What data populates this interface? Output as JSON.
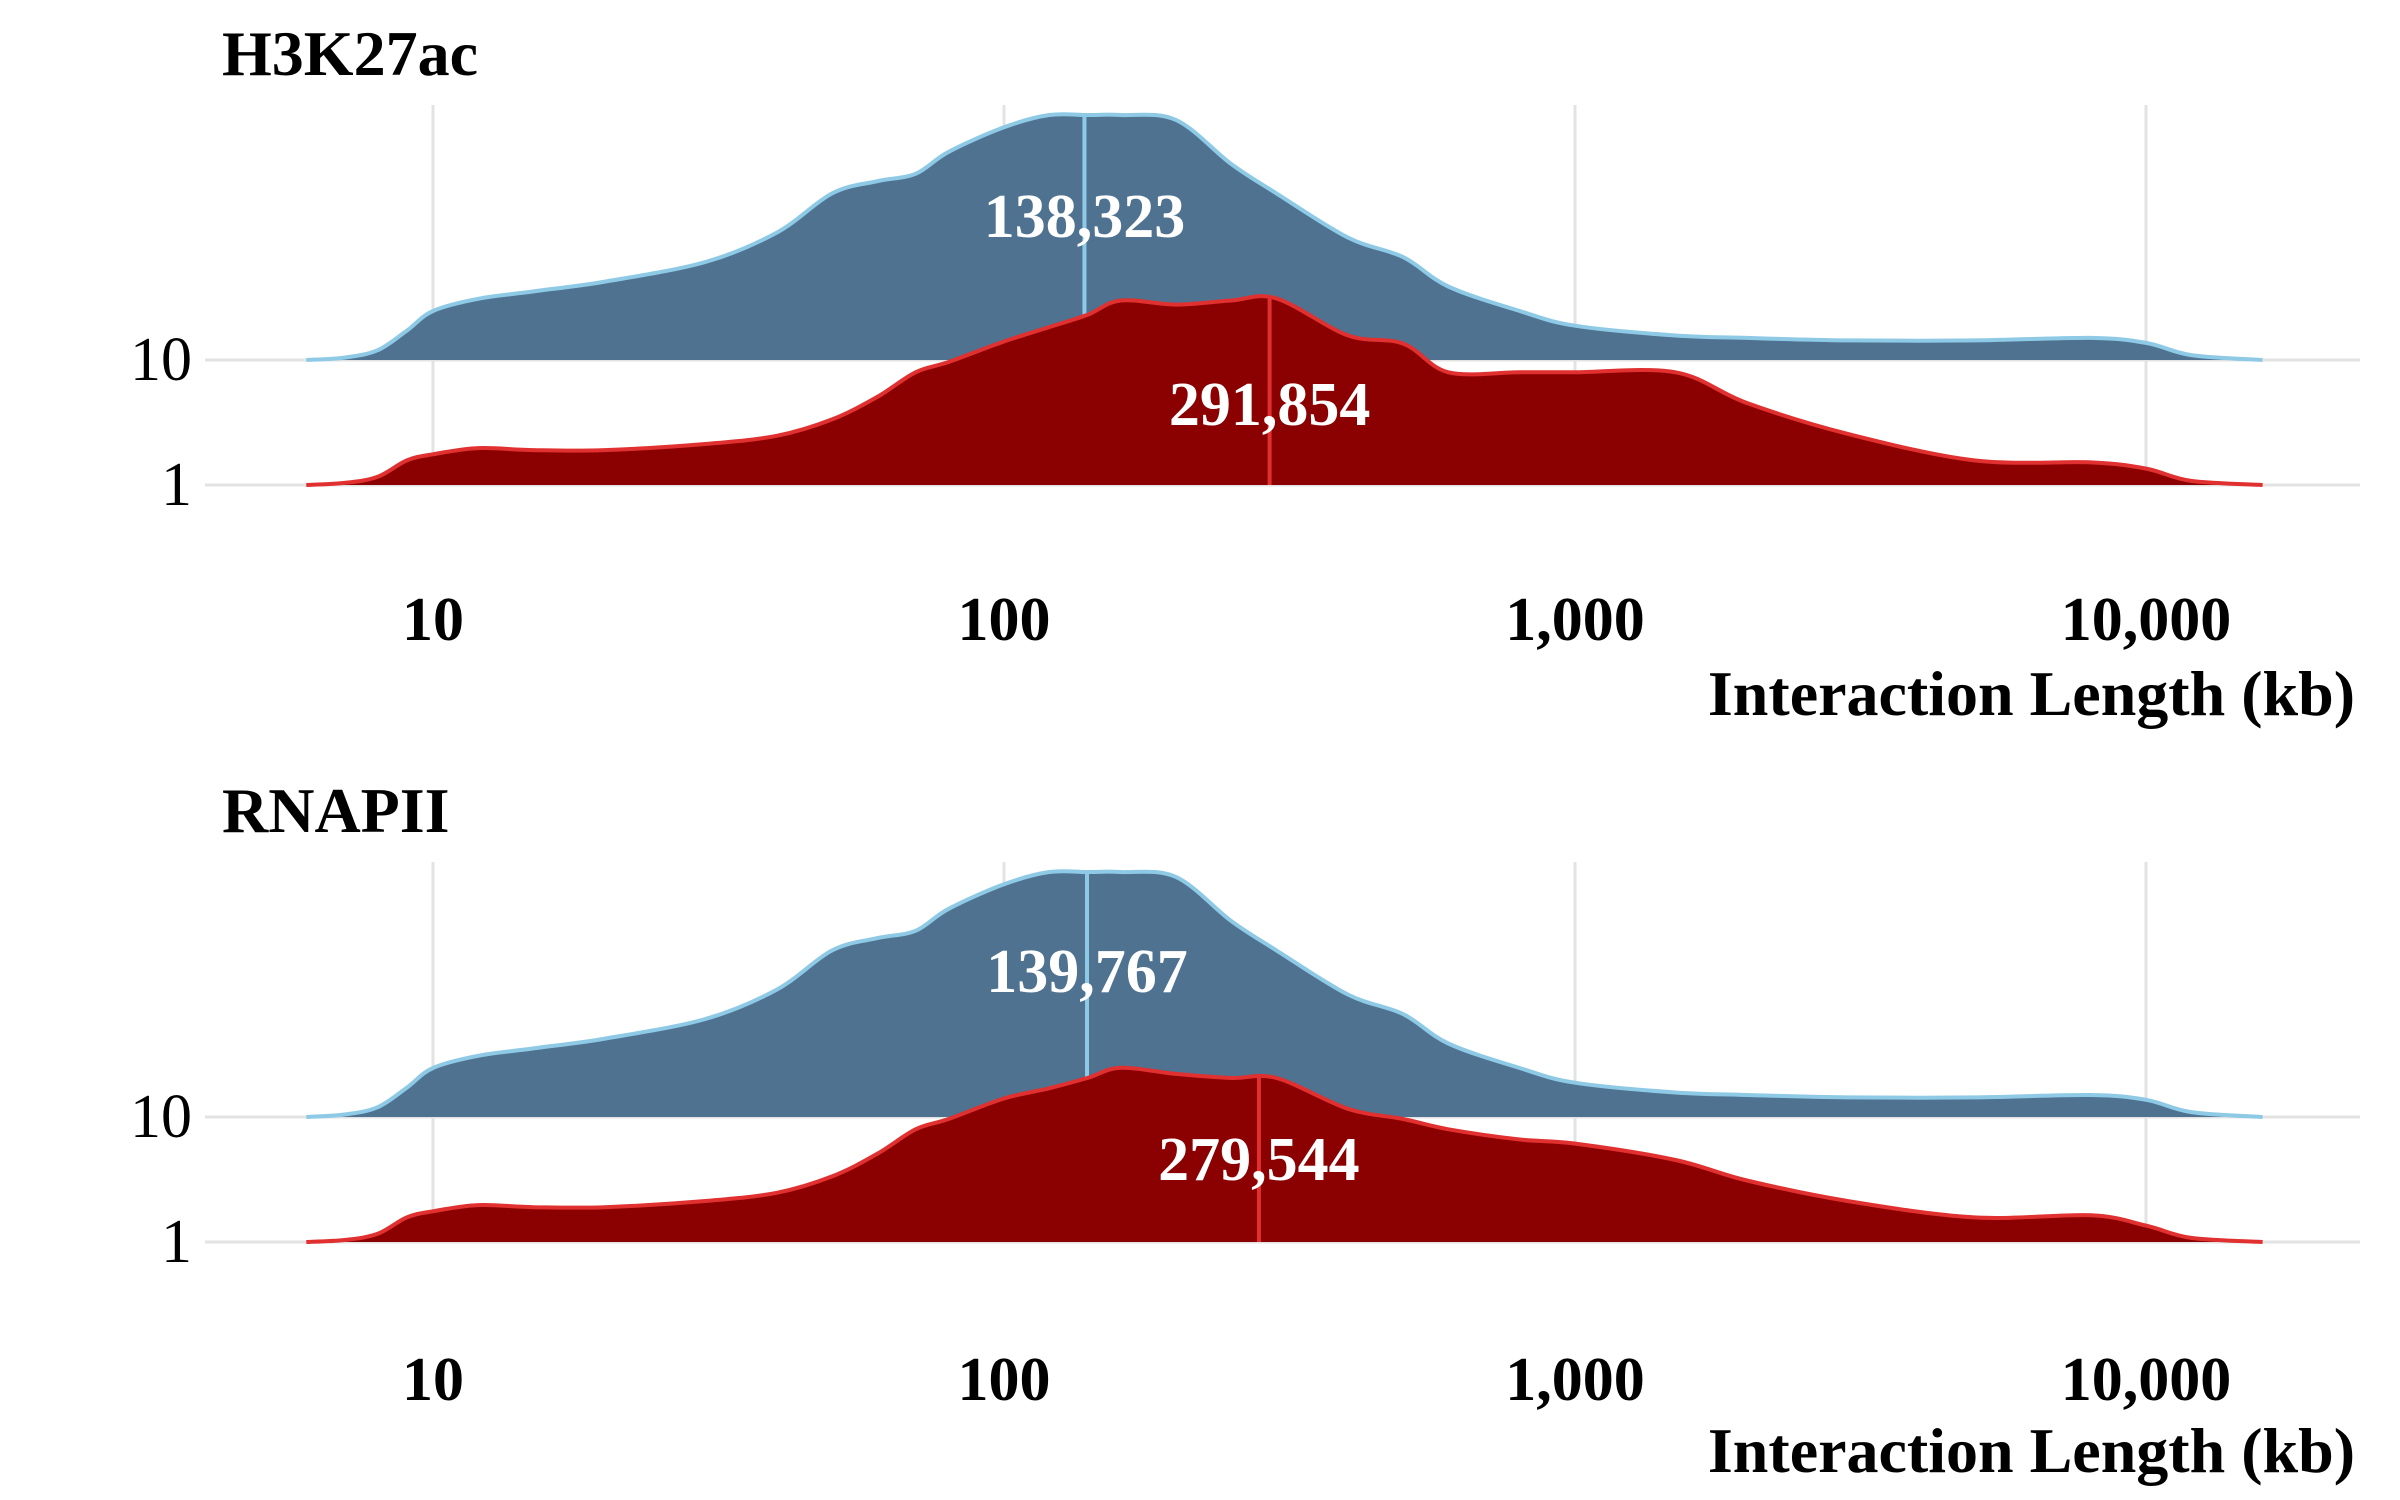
{
  "chart_data": [
    {
      "type": "area",
      "title": "H3K27ac",
      "xlabel": "Interaction Length (kb)",
      "ylabel": "",
      "x_scale": "log10",
      "xlim": [
        6,
        16000
      ],
      "x_ticks": [
        10,
        100,
        1000,
        10000
      ],
      "x_tick_labels": [
        "10",
        "100",
        "1,000",
        "10,000"
      ],
      "y_tick_labels": [
        "10",
        "1"
      ],
      "grid": true,
      "series": [
        {
          "name": "10",
          "color": "#4e7290",
          "line_color": "#8ecae6",
          "median": 138.323,
          "median_label": "138,323",
          "x": [
            6,
            7,
            8,
            9,
            10,
            12,
            15,
            20,
            30,
            40,
            50,
            60,
            70,
            80,
            100,
            120,
            140,
            160,
            200,
            250,
            300,
            400,
            500,
            600,
            800,
            1000,
            1500,
            2000,
            3000,
            5000,
            8000,
            10000,
            12000,
            16000
          ],
          "density": [
            0,
            0.01,
            0.04,
            0.12,
            0.2,
            0.25,
            0.28,
            0.32,
            0.4,
            0.52,
            0.68,
            0.73,
            0.76,
            0.85,
            0.95,
            1.0,
            1.0,
            1.0,
            0.98,
            0.8,
            0.68,
            0.5,
            0.42,
            0.3,
            0.2,
            0.14,
            0.1,
            0.09,
            0.08,
            0.08,
            0.09,
            0.07,
            0.02,
            0
          ]
        },
        {
          "name": "1",
          "color": "#8b0000",
          "line_color": "#e03030",
          "median": 291.854,
          "median_label": "291,854",
          "x": [
            6,
            7,
            8,
            9,
            10,
            12,
            15,
            20,
            30,
            40,
            50,
            60,
            70,
            80,
            100,
            120,
            140,
            160,
            200,
            250,
            300,
            400,
            500,
            600,
            800,
            1000,
            1500,
            2000,
            3000,
            5000,
            8000,
            10000,
            12000,
            16000
          ],
          "density": [
            0,
            0.01,
            0.04,
            0.12,
            0.15,
            0.18,
            0.17,
            0.17,
            0.2,
            0.24,
            0.32,
            0.43,
            0.55,
            0.6,
            0.7,
            0.77,
            0.83,
            0.9,
            0.88,
            0.9,
            0.91,
            0.73,
            0.69,
            0.55,
            0.55,
            0.55,
            0.55,
            0.4,
            0.25,
            0.12,
            0.11,
            0.08,
            0.02,
            0
          ]
        }
      ]
    },
    {
      "type": "area",
      "title": "RNAPII",
      "xlabel": "Interaction Length (kb)",
      "ylabel": "",
      "x_scale": "log10",
      "xlim": [
        6,
        16000
      ],
      "x_ticks": [
        10,
        100,
        1000,
        10000
      ],
      "x_tick_labels": [
        "10",
        "100",
        "1,000",
        "10,000"
      ],
      "y_tick_labels": [
        "10",
        "1"
      ],
      "grid": true,
      "series": [
        {
          "name": "10",
          "color": "#4e7290",
          "line_color": "#8ecae6",
          "median": 139.767,
          "median_label": "139,767",
          "x": [
            6,
            7,
            8,
            9,
            10,
            12,
            15,
            20,
            30,
            40,
            50,
            60,
            70,
            80,
            100,
            120,
            140,
            160,
            200,
            250,
            300,
            400,
            500,
            600,
            800,
            1000,
            1500,
            2000,
            3000,
            5000,
            8000,
            10000,
            12000,
            16000
          ],
          "density": [
            0,
            0.01,
            0.04,
            0.12,
            0.2,
            0.25,
            0.28,
            0.32,
            0.4,
            0.52,
            0.68,
            0.73,
            0.76,
            0.85,
            0.95,
            1.0,
            1.0,
            1.0,
            0.98,
            0.8,
            0.68,
            0.5,
            0.42,
            0.3,
            0.2,
            0.14,
            0.1,
            0.09,
            0.08,
            0.08,
            0.09,
            0.07,
            0.02,
            0
          ]
        },
        {
          "name": "1",
          "color": "#8b0000",
          "line_color": "#e03030",
          "median": 279.544,
          "median_label": "279,544",
          "x": [
            6,
            7,
            8,
            9,
            10,
            12,
            15,
            20,
            30,
            40,
            50,
            60,
            70,
            80,
            100,
            120,
            140,
            160,
            200,
            250,
            300,
            400,
            500,
            600,
            800,
            1000,
            1500,
            2000,
            3000,
            5000,
            8000,
            10000,
            12000,
            16000
          ],
          "density": [
            0,
            0.01,
            0.04,
            0.12,
            0.15,
            0.18,
            0.17,
            0.17,
            0.2,
            0.24,
            0.32,
            0.43,
            0.55,
            0.6,
            0.7,
            0.75,
            0.8,
            0.85,
            0.82,
            0.8,
            0.8,
            0.65,
            0.6,
            0.55,
            0.5,
            0.48,
            0.4,
            0.3,
            0.2,
            0.12,
            0.13,
            0.08,
            0.02,
            0
          ]
        }
      ]
    }
  ]
}
